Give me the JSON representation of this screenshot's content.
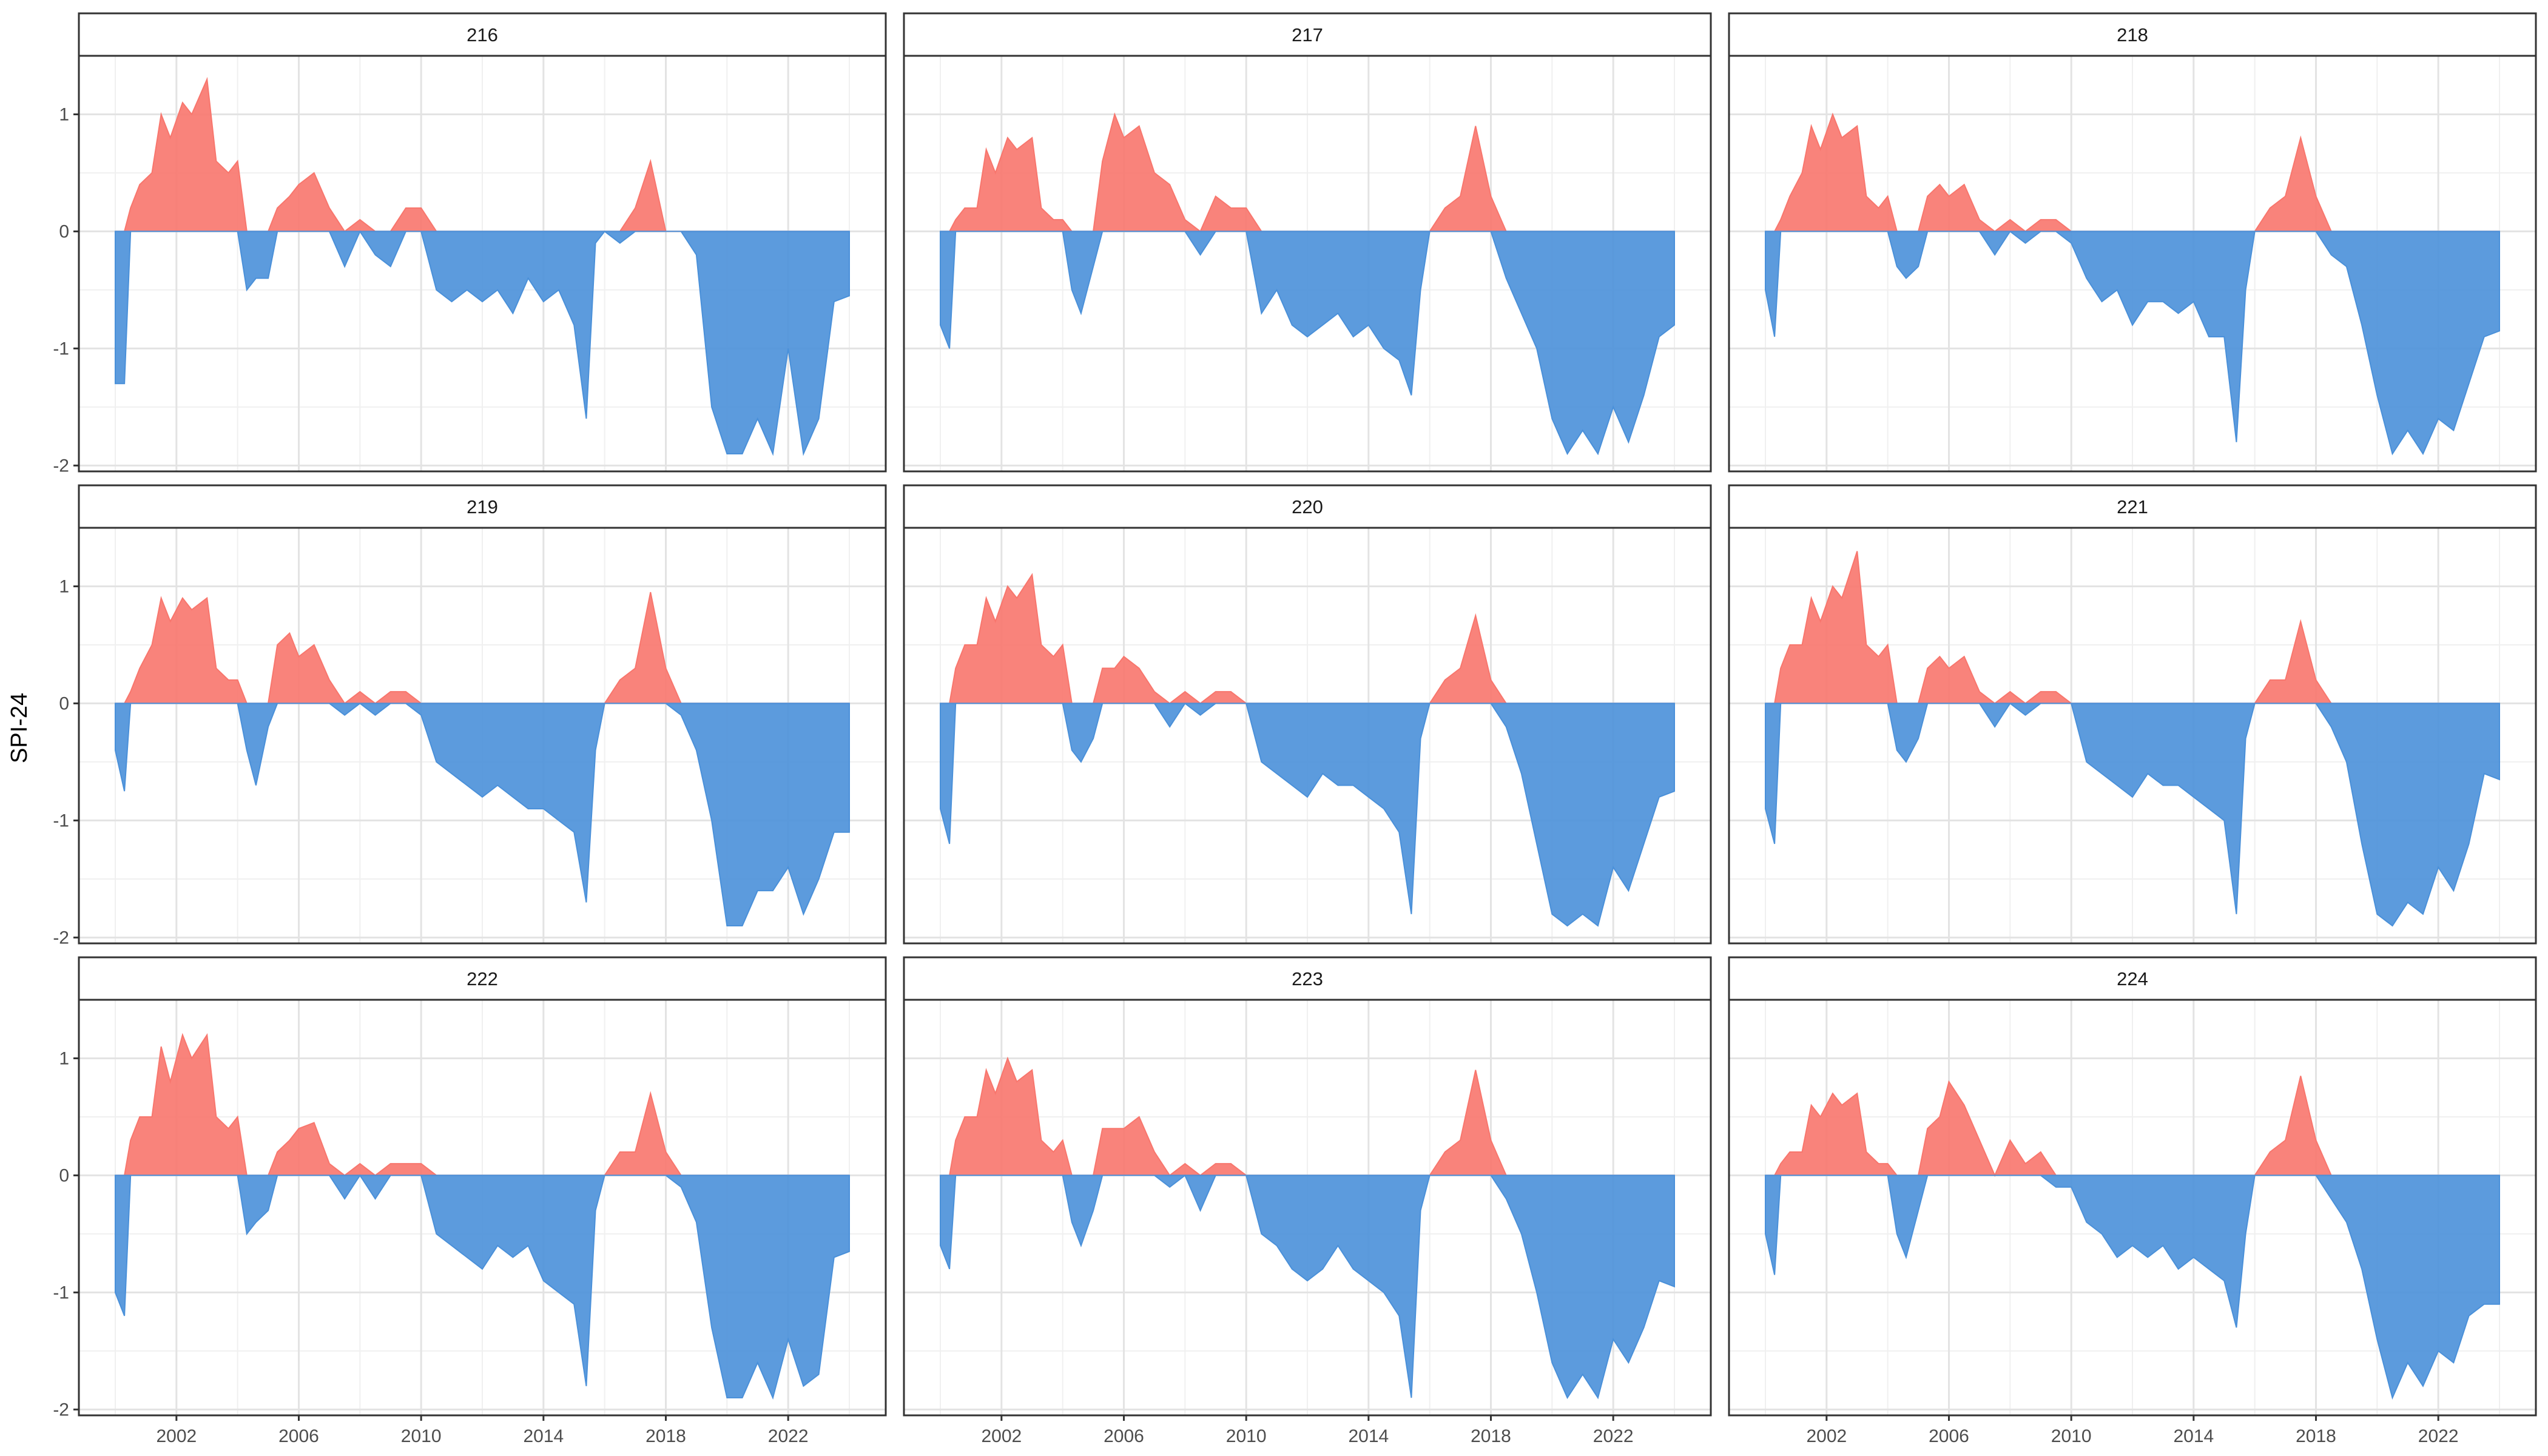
{
  "chart_data": {
    "type": "area",
    "facet_layout": {
      "rows": 3,
      "cols": 3
    },
    "ylabel": "SPI-24",
    "xlabel": "",
    "x_ticks": [
      "2002",
      "2006",
      "2010",
      "2014",
      "2018",
      "2022"
    ],
    "y_ticks": [
      "-2",
      "-1",
      "0",
      "1"
    ],
    "xlim": [
      2000.0,
      2024.0
    ],
    "ylim": [
      -2.05,
      1.5
    ],
    "grid": true,
    "positive_color": "#F8766D",
    "negative_color": "#4A90D9",
    "panels": [
      {
        "title": "216",
        "x": [
          2000.0,
          2000.3,
          2000.5,
          2000.8,
          2001.2,
          2001.5,
          2001.8,
          2002.2,
          2002.5,
          2003.0,
          2003.3,
          2003.7,
          2004.0,
          2004.3,
          2004.6,
          2005.0,
          2005.3,
          2005.7,
          2006.0,
          2006.5,
          2007.0,
          2007.5,
          2008.0,
          2008.5,
          2009.0,
          2009.5,
          2010.0,
          2010.5,
          2011.0,
          2011.5,
          2012.0,
          2012.5,
          2013.0,
          2013.5,
          2014.0,
          2014.5,
          2015.0,
          2015.4,
          2015.7,
          2016.0,
          2016.5,
          2017.0,
          2017.5,
          2018.0,
          2018.5,
          2019.0,
          2019.5,
          2020.0,
          2020.5,
          2021.0,
          2021.5,
          2022.0,
          2022.5,
          2023.0,
          2023.5,
          2024.0
        ],
        "values": [
          -1.3,
          -1.3,
          0.2,
          0.4,
          0.5,
          1.0,
          0.8,
          1.1,
          1.0,
          1.3,
          0.6,
          0.5,
          0.6,
          -0.5,
          -0.4,
          -0.4,
          0.2,
          0.3,
          0.4,
          0.5,
          0.2,
          -0.3,
          0.1,
          -0.2,
          -0.3,
          0.2,
          0.2,
          -0.5,
          -0.6,
          -0.5,
          -0.6,
          -0.5,
          -0.7,
          -0.4,
          -0.6,
          -0.5,
          -0.8,
          -1.6,
          -0.1,
          0.0,
          -0.1,
          0.2,
          0.6,
          0.0,
          0.0,
          -0.2,
          -1.5,
          -1.9,
          -1.9,
          -1.6,
          -1.9,
          -1.0,
          -1.9,
          -1.6,
          -0.6,
          -0.55
        ]
      },
      {
        "title": "217",
        "x": [
          2000.0,
          2000.3,
          2000.5,
          2000.8,
          2001.2,
          2001.5,
          2001.8,
          2002.2,
          2002.5,
          2003.0,
          2003.3,
          2003.7,
          2004.0,
          2004.3,
          2004.6,
          2005.0,
          2005.3,
          2005.7,
          2006.0,
          2006.5,
          2007.0,
          2007.5,
          2008.0,
          2008.5,
          2009.0,
          2009.5,
          2010.0,
          2010.5,
          2011.0,
          2011.5,
          2012.0,
          2012.5,
          2013.0,
          2013.5,
          2014.0,
          2014.5,
          2015.0,
          2015.4,
          2015.7,
          2016.0,
          2016.5,
          2017.0,
          2017.5,
          2018.0,
          2018.5,
          2019.0,
          2019.5,
          2020.0,
          2020.5,
          2021.0,
          2021.5,
          2022.0,
          2022.5,
          2023.0,
          2023.5,
          2024.0
        ],
        "values": [
          -0.8,
          -1.0,
          0.1,
          0.2,
          0.2,
          0.7,
          0.5,
          0.8,
          0.7,
          0.8,
          0.2,
          0.1,
          0.1,
          -0.5,
          -0.7,
          -0.3,
          0.6,
          1.0,
          0.8,
          0.9,
          0.5,
          0.4,
          0.1,
          -0.2,
          0.3,
          0.2,
          0.2,
          -0.7,
          -0.5,
          -0.8,
          -0.9,
          -0.8,
          -0.7,
          -0.9,
          -0.8,
          -1.0,
          -1.1,
          -1.4,
          -0.5,
          0.0,
          0.2,
          0.3,
          0.9,
          0.3,
          -0.4,
          -0.7,
          -1.0,
          -1.6,
          -1.9,
          -1.7,
          -1.9,
          -1.5,
          -1.8,
          -1.4,
          -0.9,
          -0.8
        ]
      },
      {
        "title": "218",
        "x": [
          2000.0,
          2000.3,
          2000.5,
          2000.8,
          2001.2,
          2001.5,
          2001.8,
          2002.2,
          2002.5,
          2003.0,
          2003.3,
          2003.7,
          2004.0,
          2004.3,
          2004.6,
          2005.0,
          2005.3,
          2005.7,
          2006.0,
          2006.5,
          2007.0,
          2007.5,
          2008.0,
          2008.5,
          2009.0,
          2009.5,
          2010.0,
          2010.5,
          2011.0,
          2011.5,
          2012.0,
          2012.5,
          2013.0,
          2013.5,
          2014.0,
          2014.5,
          2015.0,
          2015.4,
          2015.7,
          2016.0,
          2016.5,
          2017.0,
          2017.5,
          2018.0,
          2018.5,
          2019.0,
          2019.5,
          2020.0,
          2020.5,
          2021.0,
          2021.5,
          2022.0,
          2022.5,
          2023.0,
          2023.5,
          2024.0
        ],
        "values": [
          -0.5,
          -0.9,
          0.1,
          0.3,
          0.5,
          0.9,
          0.7,
          1.0,
          0.8,
          0.9,
          0.3,
          0.2,
          0.3,
          -0.3,
          -0.4,
          -0.3,
          0.3,
          0.4,
          0.3,
          0.4,
          0.1,
          -0.2,
          0.1,
          -0.1,
          0.1,
          0.1,
          -0.1,
          -0.4,
          -0.6,
          -0.5,
          -0.8,
          -0.6,
          -0.6,
          -0.7,
          -0.6,
          -0.9,
          -0.9,
          -1.8,
          -0.5,
          0.0,
          0.2,
          0.3,
          0.8,
          0.3,
          -0.2,
          -0.3,
          -0.8,
          -1.4,
          -1.9,
          -1.7,
          -1.9,
          -1.6,
          -1.7,
          -1.3,
          -0.9,
          -0.85
        ]
      },
      {
        "title": "219",
        "x": [
          2000.0,
          2000.3,
          2000.5,
          2000.8,
          2001.2,
          2001.5,
          2001.8,
          2002.2,
          2002.5,
          2003.0,
          2003.3,
          2003.7,
          2004.0,
          2004.3,
          2004.6,
          2005.0,
          2005.3,
          2005.7,
          2006.0,
          2006.5,
          2007.0,
          2007.5,
          2008.0,
          2008.5,
          2009.0,
          2009.5,
          2010.0,
          2010.5,
          2011.0,
          2011.5,
          2012.0,
          2012.5,
          2013.0,
          2013.5,
          2014.0,
          2014.5,
          2015.0,
          2015.4,
          2015.7,
          2016.0,
          2016.5,
          2017.0,
          2017.5,
          2018.0,
          2018.5,
          2019.0,
          2019.5,
          2020.0,
          2020.5,
          2021.0,
          2021.5,
          2022.0,
          2022.5,
          2023.0,
          2023.5,
          2024.0
        ],
        "values": [
          -0.4,
          -0.75,
          0.1,
          0.3,
          0.5,
          0.9,
          0.7,
          0.9,
          0.8,
          0.9,
          0.3,
          0.2,
          0.2,
          -0.4,
          -0.7,
          -0.2,
          0.5,
          0.6,
          0.4,
          0.5,
          0.2,
          -0.1,
          0.1,
          -0.1,
          0.1,
          0.1,
          -0.1,
          -0.5,
          -0.6,
          -0.7,
          -0.8,
          -0.7,
          -0.8,
          -0.9,
          -0.9,
          -1.0,
          -1.1,
          -1.7,
          -0.4,
          0.0,
          0.2,
          0.3,
          0.95,
          0.3,
          -0.1,
          -0.4,
          -1.0,
          -1.9,
          -1.9,
          -1.6,
          -1.6,
          -1.4,
          -1.8,
          -1.5,
          -1.1,
          -1.1
        ]
      },
      {
        "title": "220",
        "x": [
          2000.0,
          2000.3,
          2000.5,
          2000.8,
          2001.2,
          2001.5,
          2001.8,
          2002.2,
          2002.5,
          2003.0,
          2003.3,
          2003.7,
          2004.0,
          2004.3,
          2004.6,
          2005.0,
          2005.3,
          2005.7,
          2006.0,
          2006.5,
          2007.0,
          2007.5,
          2008.0,
          2008.5,
          2009.0,
          2009.5,
          2010.0,
          2010.5,
          2011.0,
          2011.5,
          2012.0,
          2012.5,
          2013.0,
          2013.5,
          2014.0,
          2014.5,
          2015.0,
          2015.4,
          2015.7,
          2016.0,
          2016.5,
          2017.0,
          2017.5,
          2018.0,
          2018.5,
          2019.0,
          2019.5,
          2020.0,
          2020.5,
          2021.0,
          2021.5,
          2022.0,
          2022.5,
          2023.0,
          2023.5,
          2024.0
        ],
        "values": [
          -0.9,
          -1.2,
          0.3,
          0.5,
          0.5,
          0.9,
          0.7,
          1.0,
          0.9,
          1.1,
          0.5,
          0.4,
          0.5,
          -0.4,
          -0.5,
          -0.3,
          0.3,
          0.3,
          0.4,
          0.3,
          0.1,
          -0.2,
          0.1,
          -0.1,
          0.1,
          0.1,
          0.0,
          -0.5,
          -0.6,
          -0.7,
          -0.8,
          -0.6,
          -0.7,
          -0.7,
          -0.8,
          -0.9,
          -1.1,
          -1.8,
          -0.3,
          0.0,
          0.2,
          0.3,
          0.75,
          0.2,
          -0.2,
          -0.6,
          -1.2,
          -1.8,
          -1.9,
          -1.8,
          -1.9,
          -1.4,
          -1.6,
          -1.2,
          -0.8,
          -0.75
        ]
      },
      {
        "title": "221",
        "x": [
          2000.0,
          2000.3,
          2000.5,
          2000.8,
          2001.2,
          2001.5,
          2001.8,
          2002.2,
          2002.5,
          2003.0,
          2003.3,
          2003.7,
          2004.0,
          2004.3,
          2004.6,
          2005.0,
          2005.3,
          2005.7,
          2006.0,
          2006.5,
          2007.0,
          2007.5,
          2008.0,
          2008.5,
          2009.0,
          2009.5,
          2010.0,
          2010.5,
          2011.0,
          2011.5,
          2012.0,
          2012.5,
          2013.0,
          2013.5,
          2014.0,
          2014.5,
          2015.0,
          2015.4,
          2015.7,
          2016.0,
          2016.5,
          2017.0,
          2017.5,
          2018.0,
          2018.5,
          2019.0,
          2019.5,
          2020.0,
          2020.5,
          2021.0,
          2021.5,
          2022.0,
          2022.5,
          2023.0,
          2023.5,
          2024.0
        ],
        "values": [
          -0.9,
          -1.2,
          0.3,
          0.5,
          0.5,
          0.9,
          0.7,
          1.0,
          0.9,
          1.3,
          0.5,
          0.4,
          0.5,
          -0.4,
          -0.5,
          -0.3,
          0.3,
          0.4,
          0.3,
          0.4,
          0.1,
          -0.2,
          0.1,
          -0.1,
          0.1,
          0.1,
          0.0,
          -0.5,
          -0.6,
          -0.7,
          -0.8,
          -0.6,
          -0.7,
          -0.7,
          -0.8,
          -0.9,
          -1.0,
          -1.8,
          -0.3,
          0.0,
          0.2,
          0.2,
          0.7,
          0.2,
          -0.2,
          -0.5,
          -1.2,
          -1.8,
          -1.9,
          -1.7,
          -1.8,
          -1.4,
          -1.6,
          -1.2,
          -0.6,
          -0.65
        ]
      },
      {
        "title": "222",
        "x": [
          2000.0,
          2000.3,
          2000.5,
          2000.8,
          2001.2,
          2001.5,
          2001.8,
          2002.2,
          2002.5,
          2003.0,
          2003.3,
          2003.7,
          2004.0,
          2004.3,
          2004.6,
          2005.0,
          2005.3,
          2005.7,
          2006.0,
          2006.5,
          2007.0,
          2007.5,
          2008.0,
          2008.5,
          2009.0,
          2009.5,
          2010.0,
          2010.5,
          2011.0,
          2011.5,
          2012.0,
          2012.5,
          2013.0,
          2013.5,
          2014.0,
          2014.5,
          2015.0,
          2015.4,
          2015.7,
          2016.0,
          2016.5,
          2017.0,
          2017.5,
          2018.0,
          2018.5,
          2019.0,
          2019.5,
          2020.0,
          2020.5,
          2021.0,
          2021.5,
          2022.0,
          2022.5,
          2023.0,
          2023.5,
          2024.0
        ],
        "values": [
          -1.0,
          -1.2,
          0.3,
          0.5,
          0.5,
          1.1,
          0.8,
          1.2,
          1.0,
          1.2,
          0.5,
          0.4,
          0.5,
          -0.5,
          -0.4,
          -0.3,
          0.2,
          0.3,
          0.4,
          0.45,
          0.1,
          -0.2,
          0.1,
          -0.2,
          0.1,
          0.1,
          0.1,
          -0.5,
          -0.6,
          -0.7,
          -0.8,
          -0.6,
          -0.7,
          -0.6,
          -0.9,
          -1.0,
          -1.1,
          -1.8,
          -0.3,
          0.0,
          0.2,
          0.2,
          0.7,
          0.2,
          -0.1,
          -0.4,
          -1.3,
          -1.9,
          -1.9,
          -1.6,
          -1.9,
          -1.4,
          -1.8,
          -1.7,
          -0.7,
          -0.65
        ]
      },
      {
        "title": "223",
        "x": [
          2000.0,
          2000.3,
          2000.5,
          2000.8,
          2001.2,
          2001.5,
          2001.8,
          2002.2,
          2002.5,
          2003.0,
          2003.3,
          2003.7,
          2004.0,
          2004.3,
          2004.6,
          2005.0,
          2005.3,
          2005.7,
          2006.0,
          2006.5,
          2007.0,
          2007.5,
          2008.0,
          2008.5,
          2009.0,
          2009.5,
          2010.0,
          2010.5,
          2011.0,
          2011.5,
          2012.0,
          2012.5,
          2013.0,
          2013.5,
          2014.0,
          2014.5,
          2015.0,
          2015.4,
          2015.7,
          2016.0,
          2016.5,
          2017.0,
          2017.5,
          2018.0,
          2018.5,
          2019.0,
          2019.5,
          2020.0,
          2020.5,
          2021.0,
          2021.5,
          2022.0,
          2022.5,
          2023.0,
          2023.5,
          2024.0
        ],
        "values": [
          -0.6,
          -0.8,
          0.3,
          0.5,
          0.5,
          0.9,
          0.7,
          1.0,
          0.8,
          0.9,
          0.3,
          0.2,
          0.3,
          -0.4,
          -0.6,
          -0.3,
          0.4,
          0.4,
          0.4,
          0.5,
          0.2,
          -0.1,
          0.1,
          -0.3,
          0.1,
          0.1,
          0.0,
          -0.5,
          -0.6,
          -0.8,
          -0.9,
          -0.8,
          -0.6,
          -0.8,
          -0.9,
          -1.0,
          -1.2,
          -1.9,
          -0.3,
          0.0,
          0.2,
          0.3,
          0.9,
          0.3,
          -0.2,
          -0.5,
          -1.0,
          -1.6,
          -1.9,
          -1.7,
          -1.9,
          -1.4,
          -1.6,
          -1.3,
          -0.9,
          -0.95
        ]
      },
      {
        "title": "224",
        "x": [
          2000.0,
          2000.3,
          2000.5,
          2000.8,
          2001.2,
          2001.5,
          2001.8,
          2002.2,
          2002.5,
          2003.0,
          2003.3,
          2003.7,
          2004.0,
          2004.3,
          2004.6,
          2005.0,
          2005.3,
          2005.7,
          2006.0,
          2006.5,
          2007.0,
          2007.5,
          2008.0,
          2008.5,
          2009.0,
          2009.5,
          2010.0,
          2010.5,
          2011.0,
          2011.5,
          2012.0,
          2012.5,
          2013.0,
          2013.5,
          2014.0,
          2014.5,
          2015.0,
          2015.4,
          2015.7,
          2016.0,
          2016.5,
          2017.0,
          2017.5,
          2018.0,
          2018.5,
          2019.0,
          2019.5,
          2020.0,
          2020.5,
          2021.0,
          2021.5,
          2022.0,
          2022.5,
          2023.0,
          2023.5,
          2024.0
        ],
        "values": [
          -0.5,
          -0.85,
          0.1,
          0.2,
          0.2,
          0.6,
          0.5,
          0.7,
          0.6,
          0.7,
          0.2,
          0.1,
          0.1,
          -0.5,
          -0.7,
          -0.3,
          0.4,
          0.5,
          0.8,
          0.6,
          0.3,
          0.0,
          0.3,
          0.1,
          0.2,
          -0.1,
          -0.1,
          -0.4,
          -0.5,
          -0.7,
          -0.6,
          -0.7,
          -0.6,
          -0.8,
          -0.7,
          -0.8,
          -0.9,
          -1.3,
          -0.5,
          0.0,
          0.2,
          0.3,
          0.85,
          0.3,
          -0.2,
          -0.4,
          -0.8,
          -1.4,
          -1.9,
          -1.6,
          -1.8,
          -1.5,
          -1.6,
          -1.2,
          -1.1,
          -1.1
        ]
      }
    ]
  }
}
